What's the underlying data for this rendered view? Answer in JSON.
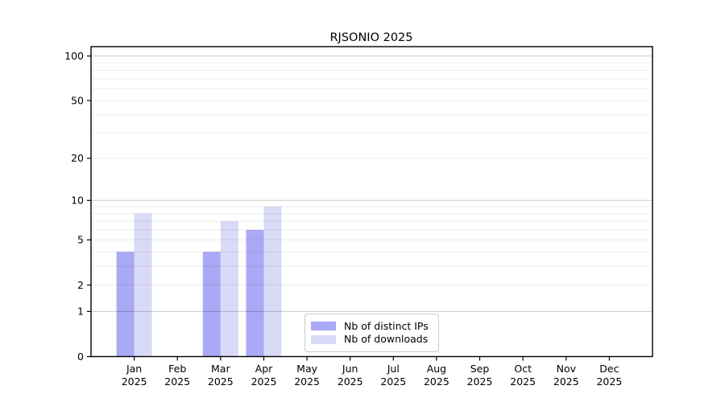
{
  "chart_data": {
    "type": "bar",
    "title": "RJSONIO 2025",
    "categories": [
      "Jan",
      "Feb",
      "Mar",
      "Apr",
      "May",
      "Jun",
      "Jul",
      "Aug",
      "Sep",
      "Oct",
      "Nov",
      "Dec"
    ],
    "x_year": "2025",
    "series": [
      {
        "name": "Nb of distinct IPs",
        "color": "#a9a9f5",
        "values": [
          4,
          0,
          4,
          6,
          0,
          0,
          0,
          0,
          0,
          0,
          0,
          0
        ]
      },
      {
        "name": "Nb of downloads",
        "color": "#d9d9f8",
        "values": [
          8,
          0,
          7,
          9,
          0,
          0,
          0,
          0,
          0,
          0,
          0,
          0
        ]
      }
    ],
    "y_ticks": [
      100,
      50,
      20,
      10,
      5,
      2,
      1,
      0
    ],
    "yscale": "log1p",
    "ylim": [
      0,
      116
    ],
    "grid": "horizontal",
    "decade_gridline_color": "#c9c9c9",
    "minor_gridline_color": "#efefef",
    "legend": {
      "items": [
        "Nb of distinct IPs",
        "Nb of downloads"
      ],
      "position": "bottom-center-inside"
    }
  }
}
